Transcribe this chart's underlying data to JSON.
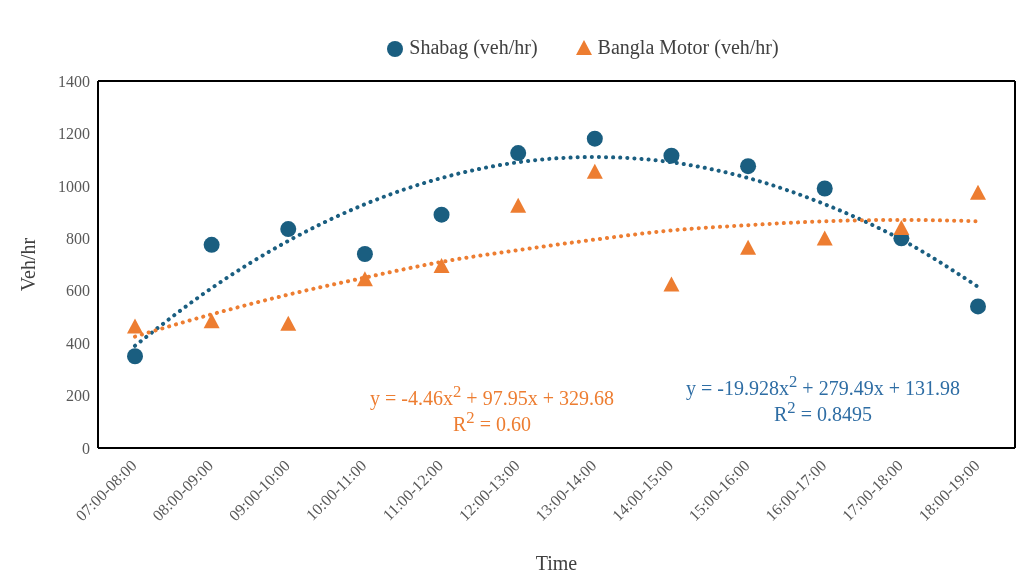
{
  "chart_data": {
    "type": "scatter",
    "xlabel": "Time",
    "ylabel": "Veh/hr",
    "categories": [
      "07:00-08:00",
      "08:00-09:00",
      "09:00-10:00",
      "10:00-11:00",
      "11:00-12:00",
      "12:00-13:00",
      "13:00-14:00",
      "14:00-15:00",
      "15:00-16:00",
      "16:00-17:00",
      "17:00-18:00",
      "18:00-19:00"
    ],
    "series": [
      {
        "name": "Shabag (veh/hr)",
        "color": "#1a5e80",
        "marker": "circle",
        "values": [
          350,
          775,
          835,
          740,
          890,
          1125,
          1180,
          1115,
          1075,
          990,
          800,
          540
        ]
      },
      {
        "name": "Bangla Motor (veh/hr)",
        "color": "#ed7d31",
        "marker": "triangle",
        "values": [
          460,
          480,
          470,
          640,
          690,
          920,
          1050,
          620,
          760,
          795,
          835,
          970
        ]
      },
      {
        "type": "line",
        "color": "#1a5e80",
        "line_style": "dotted",
        "marker": "none",
        "values": [
          390,
          610,
          790,
          930,
          1030,
          1090,
          1110,
          1090,
          1030,
          930,
          795,
          615
        ]
      },
      {
        "type": "line",
        "color": "#ed7d31",
        "line_style": "dotted",
        "marker": "none",
        "values": [
          425,
          510,
          585,
          650,
          710,
          755,
          795,
          830,
          850,
          865,
          870,
          865
        ]
      }
    ],
    "ylim": [
      0,
      1400
    ],
    "yticks": [
      0,
      200,
      400,
      600,
      800,
      1000,
      1200,
      1400
    ],
    "grid": false,
    "legend": "top",
    "annotations": [
      "y = -4.46x$^{2}$ + 97.95x + 329.68",
      "R$^{2}$ = 0.60",
      "y = -19.928x$^{2}$ + 279.49x + 131.98",
      "R$^{2}$ = 0.8495"
    ]
  }
}
